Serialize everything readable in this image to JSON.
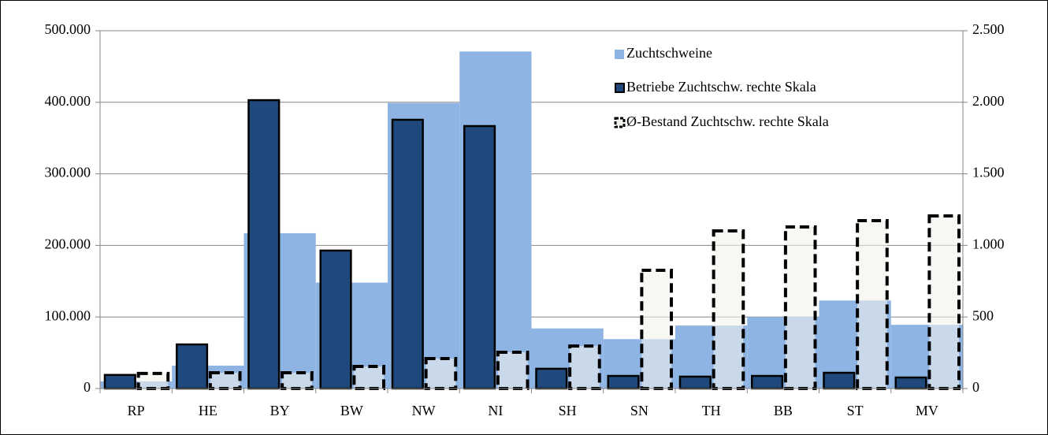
{
  "chart_data": {
    "type": "bar",
    "categories": [
      "RP",
      "HE",
      "BY",
      "BW",
      "NW",
      "NI",
      "SH",
      "SN",
      "TH",
      "BB",
      "ST",
      "MV"
    ],
    "series": [
      {
        "name": "Zuchtschweine",
        "color": "#8eb4e3",
        "values": [
          10000,
          32000,
          217000,
          148000,
          399000,
          471000,
          84000,
          69000,
          88000,
          100000,
          123000,
          89000
        ]
      },
      {
        "name": "Betriebe Zuchtschw. rechte Skala",
        "color": "#1f497d",
        "axis": "y2",
        "values": [
          95,
          308,
          2015,
          964,
          1878,
          1834,
          138,
          88,
          83,
          88,
          110,
          77
        ]
      },
      {
        "name": "Ø-Bestand Zuchtschw. rechte Skala",
        "color": "#f2f1ec",
        "axis": "y2",
        "values": [
          105,
          110,
          110,
          154,
          209,
          253,
          297,
          826,
          1101,
          1129,
          1173,
          1206
        ]
      }
    ],
    "ylim": [
      0,
      500000
    ],
    "yticks": [
      0,
      {
        "value": 100000,
        "label": "100.000"
      },
      {
        "value": 200000,
        "label": "200.000"
      },
      {
        "value": 300000,
        "label": "300.000"
      },
      {
        "value": 400000,
        "label": "400.000"
      },
      {
        "value": 500000,
        "label": "500.000"
      }
    ],
    "y2lim": [
      0,
      2500
    ],
    "y2ticks": [
      0,
      500,
      {
        "value": 1000,
        "label": "1.000"
      },
      {
        "value": 1500,
        "label": "1.500"
      },
      {
        "value": 2000,
        "label": "2.000"
      },
      {
        "value": 2500,
        "label": "2.500"
      }
    ],
    "grid": true
  }
}
